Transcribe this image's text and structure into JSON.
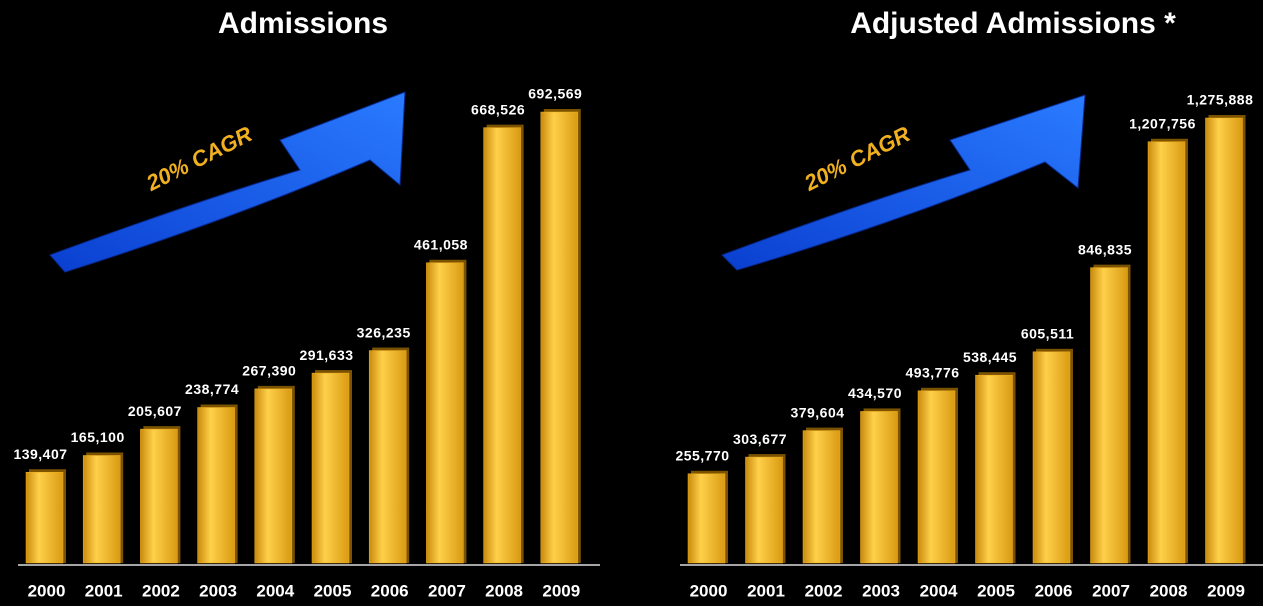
{
  "chart_data": [
    {
      "type": "bar",
      "title": "Admissions",
      "annotation": "20% CAGR",
      "categories": [
        "2000",
        "2001",
        "2002",
        "2003",
        "2004",
        "2005",
        "2006",
        "2007",
        "2008",
        "2009"
      ],
      "values": [
        139407,
        165100,
        205607,
        238774,
        267390,
        291633,
        326235,
        461058,
        668526,
        692569
      ],
      "value_labels": [
        "139,407",
        "165,100",
        "205,607",
        "238,774",
        "267,390",
        "291,633",
        "326,235",
        "461,058",
        "668,526",
        "692,569"
      ],
      "color": "#f5b21e"
    },
    {
      "type": "bar",
      "title": "Adjusted Admissions *",
      "annotation": "20% CAGR",
      "categories": [
        "2000",
        "2001",
        "2002",
        "2003",
        "2004",
        "2005",
        "2006",
        "2007",
        "2008",
        "2009"
      ],
      "values": [
        255770,
        303677,
        379604,
        434570,
        493776,
        538445,
        605511,
        846835,
        1207756,
        1275888
      ],
      "value_labels": [
        "255,770",
        "303,677",
        "379,604",
        "434,570",
        "493,776",
        "538,445",
        "605,511",
        "846,835",
        "1,207,756",
        "1,275,888"
      ],
      "color": "#f5b21e"
    }
  ]
}
